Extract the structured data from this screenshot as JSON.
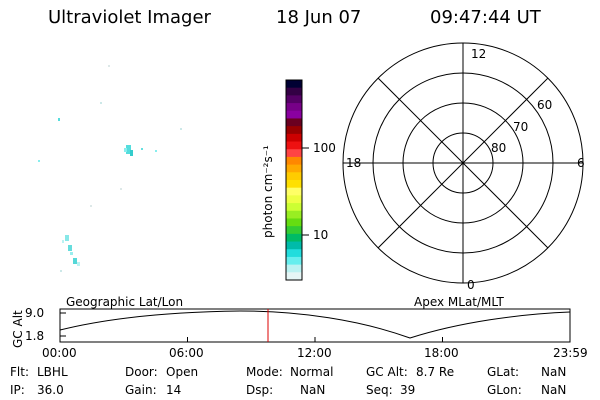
{
  "header": {
    "instrument": "Ultraviolet Imager",
    "date": "18 Jun 07",
    "time": "09:47:44 UT"
  },
  "colorbar": {
    "unit_label": "photon cm⁻²s⁻¹",
    "ticks": [
      "100",
      "10"
    ],
    "colors": [
      "#000033",
      "#330044",
      "#550066",
      "#770088",
      "#8a00a0",
      "#6a0020",
      "#990000",
      "#cc0000",
      "#ee1111",
      "#ff4444",
      "#ff8800",
      "#ffaa00",
      "#ffcc00",
      "#ffe000",
      "#ffff66",
      "#eeff44",
      "#ccff33",
      "#99ee22",
      "#66dd11",
      "#33cc33",
      "#00bb66",
      "#00bbaa",
      "#22dddd",
      "#66eeee",
      "#bbf2f2",
      "#e6f6f6"
    ]
  },
  "polar_grid": {
    "mlt_labels": {
      "top": "12",
      "left": "18",
      "right": "6",
      "bottom": "0"
    },
    "lat_labels": [
      "60",
      "70",
      "80"
    ]
  },
  "timeline": {
    "y_axis_label": "GC Alt",
    "y_ticks": [
      "9.0",
      "1.8"
    ],
    "left_label": "Geographic Lat/Lon",
    "right_label": "Apex MLat/MLT",
    "x_ticks": [
      "00:00",
      "06:00",
      "12:00",
      "18:00",
      "23:59"
    ],
    "current_time_color": "#dd0000"
  },
  "status": {
    "row1": [
      {
        "label": "Flt:",
        "value": "LBHL"
      },
      {
        "label": "Door:",
        "value": "Open"
      },
      {
        "label": "Mode:",
        "value": "Normal"
      },
      {
        "label": "GC Alt:",
        "value": "8.7 Re"
      },
      {
        "label": "GLat:",
        "value": "NaN"
      }
    ],
    "row2": [
      {
        "label": "IP:",
        "value": "36.0"
      },
      {
        "label": "Gain:",
        "value": "14"
      },
      {
        "label": "Dsp:",
        "value": "NaN"
      },
      {
        "label": "Seq:",
        "value": "39"
      },
      {
        "label": "GLon:",
        "value": "NaN"
      }
    ]
  }
}
